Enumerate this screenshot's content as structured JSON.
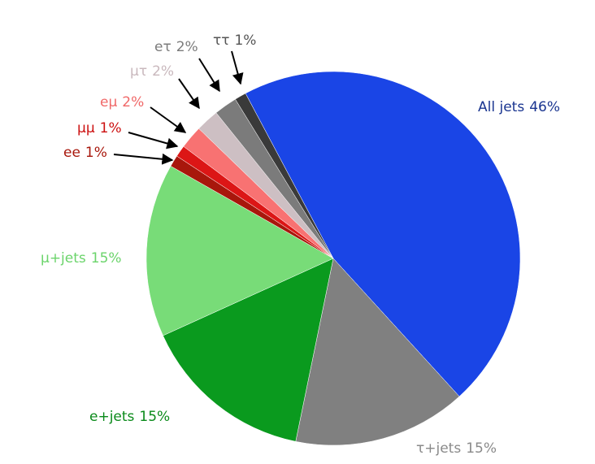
{
  "chart_data": {
    "type": "pie",
    "categories": [
      "All jets",
      "τ+jets",
      "e+jets",
      "μ+jets",
      "ee",
      "μμ",
      "eμ",
      "μτ",
      "eτ",
      "ττ"
    ],
    "values": [
      46,
      15,
      15,
      15,
      1,
      1,
      2,
      2,
      2,
      1
    ],
    "value_labels": [
      "46%",
      "15%",
      "15%",
      "15%",
      "1%",
      "1%",
      "2%",
      "2%",
      "2%",
      "1%"
    ],
    "colors": [
      "#1a45e6",
      "#808080",
      "#0a9a1e",
      "#78dc78",
      "#a8170c",
      "#dc1616",
      "#f87272",
      "#cdbfc3",
      "#7b7b7b",
      "#3a3a3a"
    ],
    "label_colors": [
      "#1a3590",
      "#8a8a8a",
      "#0a8a1a",
      "#6bd46b",
      "#a8170c",
      "#cc1010",
      "#f06868",
      "#c9b8bd",
      "#7b7b7b",
      "#555555"
    ]
  }
}
